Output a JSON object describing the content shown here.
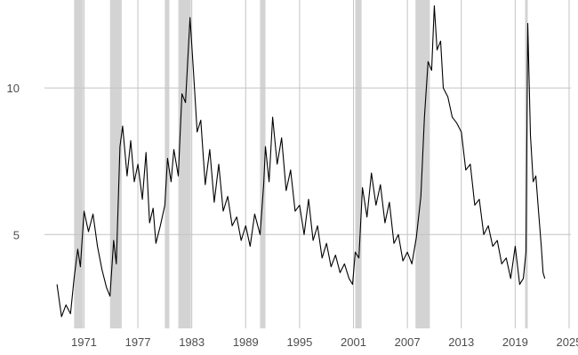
{
  "chart_data": {
    "type": "line",
    "title": "",
    "xlabel": "",
    "ylabel": "",
    "xlim": [
      1966.6,
      2025.2
    ],
    "ylim": [
      1.8,
      13.0
    ],
    "grid": true,
    "x_ticks": [
      1971,
      1977,
      1983,
      1989,
      1995,
      2001,
      2007,
      2013,
      2019,
      2025
    ],
    "y_ticks": [
      5,
      10
    ],
    "colors": {
      "line": "#000000",
      "shade": "#d3d3d3",
      "grid": "#c4c4c4",
      "background": "#ffffff"
    },
    "shaded_periods": [
      [
        1969.9,
        1970.9
      ],
      [
        1973.9,
        1975.2
      ],
      [
        1980.0,
        1980.5
      ],
      [
        1981.5,
        1982.9
      ],
      [
        1990.6,
        1991.2
      ],
      [
        2001.2,
        2001.9
      ],
      [
        2007.9,
        2009.5
      ],
      [
        2020.1,
        2020.4
      ]
    ],
    "series": [
      {
        "points": [
          [
            1968.0,
            3.3
          ],
          [
            1968.5,
            2.2
          ],
          [
            1969.0,
            2.6
          ],
          [
            1969.5,
            2.3
          ],
          [
            1969.9,
            3.5
          ],
          [
            1970.3,
            4.5
          ],
          [
            1970.6,
            3.9
          ],
          [
            1971.0,
            5.8
          ],
          [
            1971.5,
            5.1
          ],
          [
            1972.0,
            5.7
          ],
          [
            1972.5,
            4.6
          ],
          [
            1973.0,
            3.8
          ],
          [
            1973.5,
            3.2
          ],
          [
            1973.9,
            2.9
          ],
          [
            1974.3,
            4.8
          ],
          [
            1974.6,
            4.0
          ],
          [
            1975.0,
            8.0
          ],
          [
            1975.3,
            8.7
          ],
          [
            1975.8,
            7.0
          ],
          [
            1976.2,
            8.2
          ],
          [
            1976.6,
            6.8
          ],
          [
            1977.0,
            7.4
          ],
          [
            1977.5,
            6.2
          ],
          [
            1977.9,
            7.8
          ],
          [
            1978.3,
            5.4
          ],
          [
            1978.7,
            5.9
          ],
          [
            1979.0,
            4.7
          ],
          [
            1979.5,
            5.3
          ],
          [
            1980.0,
            6.0
          ],
          [
            1980.3,
            7.6
          ],
          [
            1980.7,
            6.8
          ],
          [
            1981.0,
            7.9
          ],
          [
            1981.5,
            7.0
          ],
          [
            1981.9,
            9.8
          ],
          [
            1982.3,
            9.5
          ],
          [
            1982.8,
            12.4
          ],
          [
            1983.2,
            10.5
          ],
          [
            1983.6,
            8.5
          ],
          [
            1984.0,
            8.9
          ],
          [
            1984.5,
            6.7
          ],
          [
            1985.0,
            7.9
          ],
          [
            1985.5,
            6.1
          ],
          [
            1986.0,
            7.4
          ],
          [
            1986.5,
            5.8
          ],
          [
            1987.0,
            6.3
          ],
          [
            1987.5,
            5.3
          ],
          [
            1988.0,
            5.6
          ],
          [
            1988.5,
            4.8
          ],
          [
            1989.0,
            5.3
          ],
          [
            1989.5,
            4.6
          ],
          [
            1990.0,
            5.7
          ],
          [
            1990.6,
            5.0
          ],
          [
            1991.0,
            6.7
          ],
          [
            1991.2,
            8.0
          ],
          [
            1991.6,
            6.8
          ],
          [
            1992.0,
            9.0
          ],
          [
            1992.5,
            7.4
          ],
          [
            1993.0,
            8.3
          ],
          [
            1993.5,
            6.5
          ],
          [
            1994.0,
            7.2
          ],
          [
            1994.5,
            5.8
          ],
          [
            1995.0,
            6.0
          ],
          [
            1995.5,
            5.0
          ],
          [
            1996.0,
            6.2
          ],
          [
            1996.5,
            4.8
          ],
          [
            1997.0,
            5.3
          ],
          [
            1997.5,
            4.2
          ],
          [
            1998.0,
            4.7
          ],
          [
            1998.5,
            3.9
          ],
          [
            1999.0,
            4.3
          ],
          [
            1999.5,
            3.7
          ],
          [
            2000.0,
            4.0
          ],
          [
            2000.5,
            3.5
          ],
          [
            2000.9,
            3.3
          ],
          [
            2001.2,
            4.4
          ],
          [
            2001.6,
            4.2
          ],
          [
            2002.0,
            6.6
          ],
          [
            2002.5,
            5.6
          ],
          [
            2003.0,
            7.1
          ],
          [
            2003.5,
            6.0
          ],
          [
            2004.0,
            6.7
          ],
          [
            2004.5,
            5.4
          ],
          [
            2005.0,
            6.1
          ],
          [
            2005.5,
            4.7
          ],
          [
            2006.0,
            5.0
          ],
          [
            2006.5,
            4.1
          ],
          [
            2007.0,
            4.4
          ],
          [
            2007.5,
            4.0
          ],
          [
            2008.0,
            4.9
          ],
          [
            2008.5,
            6.3
          ],
          [
            2008.9,
            9.0
          ],
          [
            2009.3,
            10.9
          ],
          [
            2009.7,
            10.6
          ],
          [
            2010.0,
            12.8
          ],
          [
            2010.3,
            11.3
          ],
          [
            2010.7,
            11.6
          ],
          [
            2011.0,
            10.0
          ],
          [
            2011.5,
            9.7
          ],
          [
            2012.0,
            9.0
          ],
          [
            2012.5,
            8.8
          ],
          [
            2013.0,
            8.5
          ],
          [
            2013.5,
            7.2
          ],
          [
            2014.0,
            7.4
          ],
          [
            2014.5,
            6.0
          ],
          [
            2015.0,
            6.2
          ],
          [
            2015.5,
            5.0
          ],
          [
            2016.0,
            5.3
          ],
          [
            2016.5,
            4.6
          ],
          [
            2017.0,
            4.8
          ],
          [
            2017.5,
            4.0
          ],
          [
            2018.0,
            4.2
          ],
          [
            2018.5,
            3.5
          ],
          [
            2019.0,
            4.6
          ],
          [
            2019.5,
            3.3
          ],
          [
            2019.9,
            3.5
          ],
          [
            2020.2,
            4.4
          ],
          [
            2020.4,
            12.2
          ],
          [
            2020.7,
            8.4
          ],
          [
            2021.0,
            6.8
          ],
          [
            2021.3,
            7.0
          ],
          [
            2021.6,
            5.8
          ],
          [
            2021.9,
            4.6
          ],
          [
            2022.1,
            3.7
          ],
          [
            2022.3,
            3.5
          ]
        ]
      }
    ]
  }
}
